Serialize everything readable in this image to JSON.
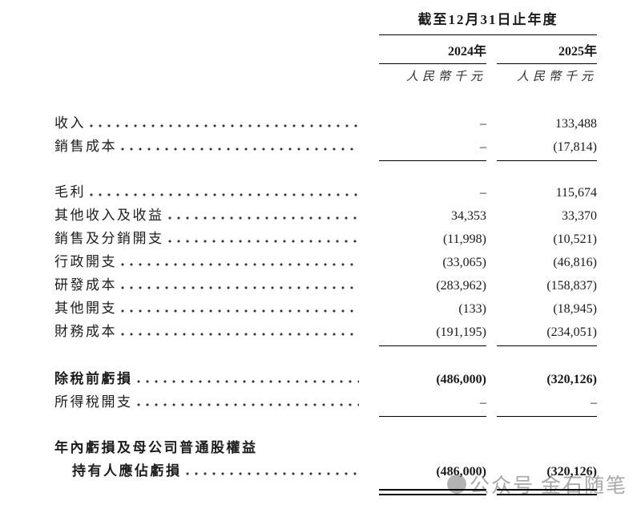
{
  "header": {
    "period_title": "截至12月31日止年度",
    "col_2024": "2024年",
    "col_2025": "2025年",
    "unit_2024": "人民幣千元",
    "unit_2025": "人民幣千元"
  },
  "rows": [
    {
      "label": "收入",
      "y2024": "–",
      "y2025": "133,488"
    },
    {
      "label": "銷售成本",
      "y2024": "–",
      "y2025": "(17,814)"
    },
    {
      "label": "毛利",
      "y2024": "–",
      "y2025": "115,674"
    },
    {
      "label": "其他收入及收益",
      "y2024": "34,353",
      "y2025": "33,370"
    },
    {
      "label": "銷售及分銷開支",
      "y2024": "(11,998)",
      "y2025": "(10,521)"
    },
    {
      "label": "行政開支",
      "y2024": "(33,065)",
      "y2025": "(46,816)"
    },
    {
      "label": "研發成本",
      "y2024": "(283,962)",
      "y2025": "(158,837)"
    },
    {
      "label": "其他開支",
      "y2024": "(133)",
      "y2025": "(18,945)"
    },
    {
      "label": "財務成本",
      "y2024": "(191,195)",
      "y2025": "(234,051)"
    },
    {
      "label": "除稅前虧損",
      "y2024": "(486,000)",
      "y2025": "(320,126)"
    },
    {
      "label": "所得稅開支",
      "y2024": "–",
      "y2025": "–"
    },
    {
      "label": "年內虧損及母公司普通股權益",
      "y2024": "",
      "y2025": ""
    },
    {
      "label": "持有人應佔虧損",
      "y2024": "(486,000)",
      "y2025": "(320,126)"
    }
  ],
  "watermark": {
    "badge": "公众号",
    "name": "金石随笔"
  },
  "colors": {
    "text": "#1a1a1a",
    "rule": "#000000",
    "watermark": "#a8a8a8",
    "background": "#ffffff"
  }
}
